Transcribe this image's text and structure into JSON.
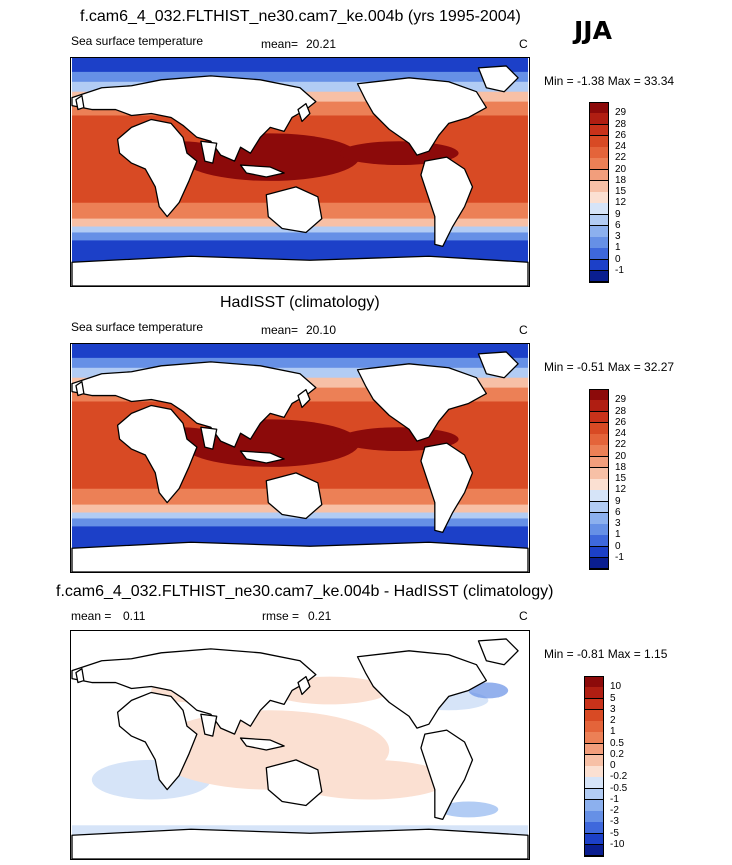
{
  "season": "JJA",
  "units": "C",
  "panels": [
    {
      "title": "f.cam6_4_032.FLTHIST_ne30.cam7_ke.004b (yrs 1995-2004)",
      "variable": "Sea surface temperature",
      "mean_label": "mean=",
      "mean_value": "20.21",
      "units": "C",
      "minmax": "Min =  -1.38 Max =  33.34",
      "kind": "abs"
    },
    {
      "title": "HadISST (climatology)",
      "variable": "Sea surface temperature",
      "mean_label": "mean=",
      "mean_value": "20.10",
      "units": "C",
      "minmax": "Min =  -0.51 Max =  32.27",
      "kind": "abs"
    },
    {
      "title": "f.cam6_4_032.FLTHIST_ne30.cam7_ke.004b - HadISST (climatology)",
      "mean_label": "mean =",
      "mean_value": "0.11",
      "rmse_label": "rmse =",
      "rmse_value": "0.21",
      "units": "C",
      "minmax": "Min =  -0.81 Max =   1.15",
      "kind": "diff"
    }
  ],
  "colorbar_abs": {
    "labels": [
      "29",
      "28",
      "26",
      "24",
      "22",
      "20",
      "18",
      "15",
      "12",
      "9",
      "6",
      "3",
      "1",
      "0",
      "-1"
    ],
    "colors": [
      "#8c0a0a",
      "#b01e12",
      "#c8321a",
      "#d84a24",
      "#e4643a",
      "#ec8056",
      "#f29e7c",
      "#f7c0a6",
      "#fbe0d2",
      "#d6e4f8",
      "#b2ccf4",
      "#8cb0ee",
      "#6690e6",
      "#3e68dc",
      "#1c40c8",
      "#0a1e90"
    ]
  },
  "colorbar_diff": {
    "labels": [
      "10",
      "5",
      "3",
      "2",
      "1",
      "0.5",
      "0.2",
      "0",
      "-0.2",
      "-0.5",
      "-1",
      "-2",
      "-3",
      "-5",
      "-10"
    ],
    "colors": [
      "#8c0a0a",
      "#b01e12",
      "#c8321a",
      "#d84a24",
      "#e4643a",
      "#ec8056",
      "#f29e7c",
      "#f7c0a6",
      "#fbe0d2",
      "#d6e4f8",
      "#b2ccf4",
      "#8cb0ee",
      "#6690e6",
      "#3e68dc",
      "#1c40c8",
      "#0a1e90"
    ]
  },
  "map_colors": {
    "land": "#ffffff",
    "coast": "#000000",
    "hot": "#8c0a0a",
    "warm": "#d84a24",
    "mild": "#ec8056",
    "cool": "#f7c0a6",
    "cold": "#b2ccf4",
    "colder": "#6690e6",
    "polar": "#1c40c8",
    "pale_warm": "#fbe0d2",
    "pale_cool": "#d6e4f8"
  }
}
